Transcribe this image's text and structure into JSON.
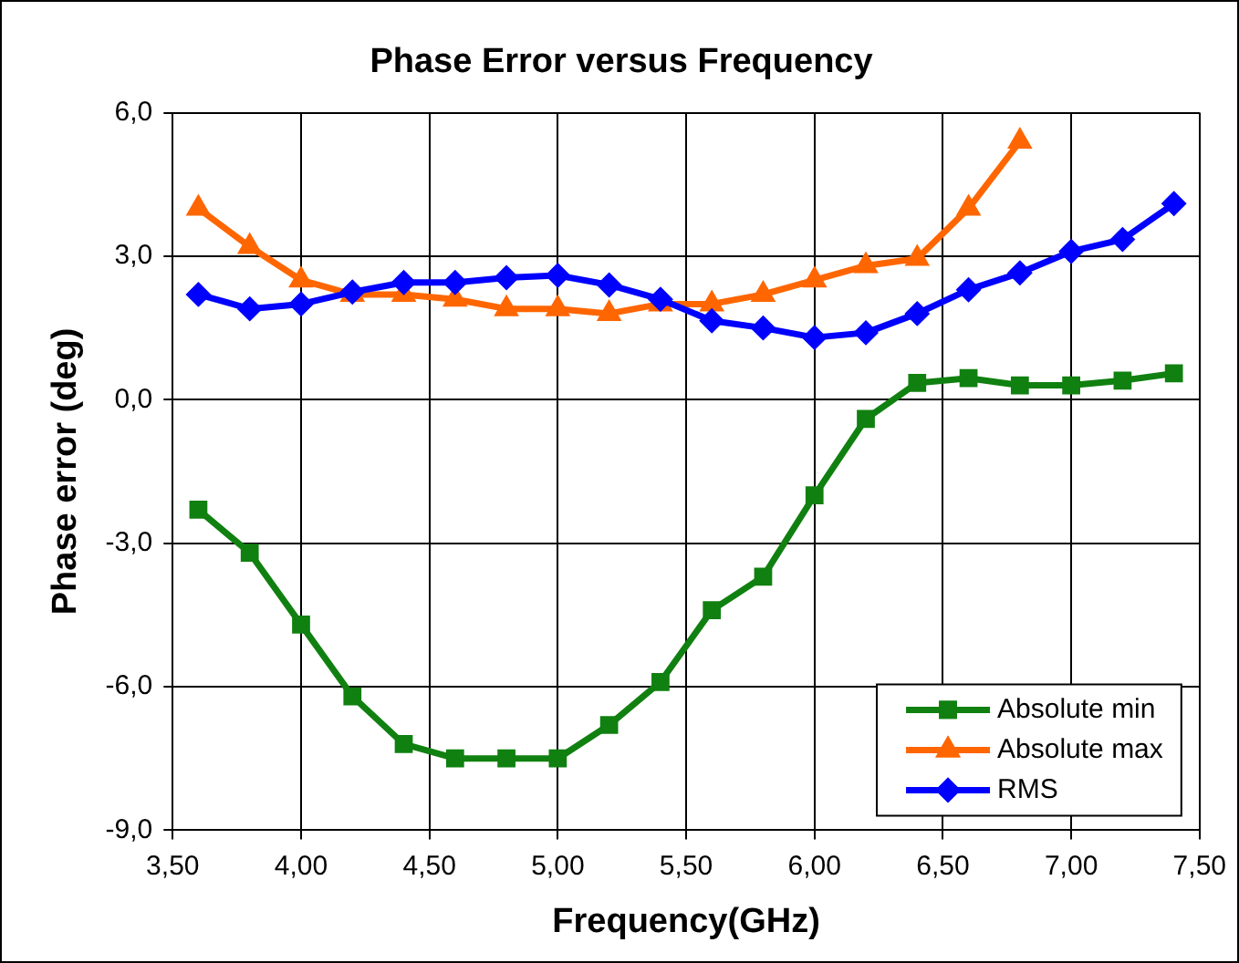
{
  "chart_data": {
    "type": "line",
    "title": "Phase Error versus Frequency",
    "xlabel": "Frequency(GHz)",
    "ylabel": "Phase error (deg)",
    "x": [
      3.6,
      3.8,
      4.0,
      4.2,
      4.4,
      4.6,
      4.8,
      5.0,
      5.2,
      5.4,
      5.6,
      5.8,
      6.0,
      6.2,
      6.4,
      6.6,
      6.8,
      7.0,
      7.2,
      7.4
    ],
    "series": [
      {
        "name": "Absolute min",
        "color": "#108010",
        "marker": "square",
        "values": [
          -2.3,
          -3.2,
          -4.7,
          -6.2,
          -7.2,
          -7.5,
          -7.5,
          -7.5,
          -6.8,
          -5.9,
          -4.4,
          -3.7,
          -2.0,
          -0.4,
          0.35,
          0.45,
          0.3,
          0.3,
          0.4,
          0.55
        ]
      },
      {
        "name": "Absolute max",
        "color": "#ff6600",
        "marker": "triangle",
        "values": [
          4.0,
          3.2,
          2.5,
          2.2,
          2.2,
          2.1,
          1.9,
          1.9,
          1.8,
          2.0,
          2.0,
          2.2,
          2.5,
          2.8,
          2.95,
          4.0,
          5.4,
          null,
          null,
          null
        ]
      },
      {
        "name": "RMS",
        "color": "#0000ff",
        "marker": "diamond",
        "values": [
          2.2,
          1.9,
          2.0,
          2.25,
          2.45,
          2.45,
          2.55,
          2.6,
          2.4,
          2.1,
          1.65,
          1.5,
          1.3,
          1.4,
          1.8,
          2.3,
          2.65,
          3.1,
          3.35,
          4.1
        ]
      }
    ],
    "xlim": [
      3.5,
      7.5
    ],
    "xticks": [
      {
        "value": 3.5,
        "label": "3,50"
      },
      {
        "value": 4.0,
        "label": "4,00"
      },
      {
        "value": 4.5,
        "label": "4,50"
      },
      {
        "value": 5.0,
        "label": "5,00"
      },
      {
        "value": 5.5,
        "label": "5,50"
      },
      {
        "value": 6.0,
        "label": "6,00"
      },
      {
        "value": 6.5,
        "label": "6,50"
      },
      {
        "value": 7.0,
        "label": "7,00"
      },
      {
        "value": 7.5,
        "label": "7,50"
      }
    ],
    "ylim": [
      -9,
      6
    ],
    "yticks": [
      {
        "value": -9,
        "label": "-9,0"
      },
      {
        "value": -6,
        "label": "-6,0"
      },
      {
        "value": -3,
        "label": "-3,0"
      },
      {
        "value": 0,
        "label": "0,0"
      },
      {
        "value": 3,
        "label": "3,0"
      },
      {
        "value": 6,
        "label": "6,0"
      }
    ],
    "grid": true,
    "legend": "bottom right",
    "line_style": "solid"
  }
}
